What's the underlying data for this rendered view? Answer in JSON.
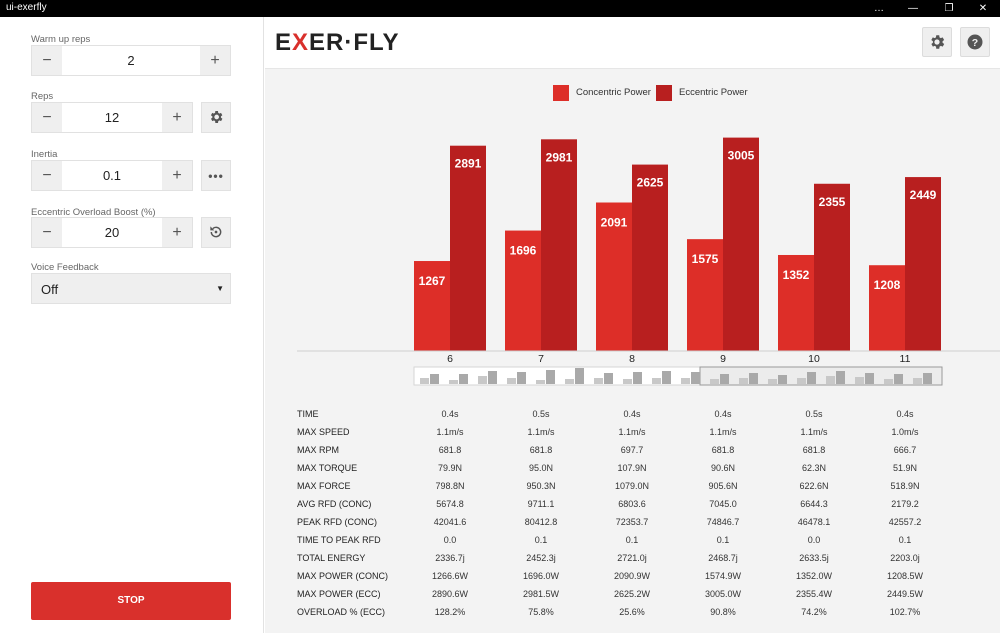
{
  "window": {
    "title": "ui-exerfly",
    "controls": [
      "…",
      "—",
      "❐",
      "✕"
    ]
  },
  "controls": {
    "warmup": {
      "label": "Warm up reps",
      "value": "2"
    },
    "reps": {
      "label": "Reps",
      "value": "12"
    },
    "inertia": {
      "label": "Inertia",
      "value": "0.1"
    },
    "overload": {
      "label": "Eccentric Overload Boost (%)",
      "value": "20"
    },
    "voice": {
      "label": "Voice Feedback",
      "value": "Off"
    },
    "stop_label": "STOP"
  },
  "brand": {
    "logo_part1": "E",
    "logo_part2": "X",
    "logo_part3": "ER·FLY"
  },
  "colors": {
    "concentric": "#dd2e28",
    "eccentric": "#b81f1f",
    "stop": "#d9302c"
  },
  "chart_data": {
    "type": "bar",
    "categories": [
      "6",
      "7",
      "8",
      "9",
      "10",
      "11"
    ],
    "series": [
      {
        "name": "Concentric Power",
        "values": [
          1267,
          1696,
          2091,
          1575,
          1352,
          1208
        ]
      },
      {
        "name": "Eccentric Power",
        "values": [
          2891,
          2981,
          2625,
          3005,
          2355,
          2449
        ]
      }
    ],
    "ylim": [
      0,
      3450
    ],
    "legend": "top-center",
    "grid": false
  },
  "metrics": {
    "rows": [
      {
        "label": "TIME",
        "values": [
          "0.4s",
          "0.5s",
          "0.4s",
          "0.4s",
          "0.5s",
          "0.4s"
        ]
      },
      {
        "label": "MAX SPEED",
        "values": [
          "1.1m/s",
          "1.1m/s",
          "1.1m/s",
          "1.1m/s",
          "1.1m/s",
          "1.0m/s"
        ]
      },
      {
        "label": "MAX RPM",
        "values": [
          "681.8",
          "681.8",
          "697.7",
          "681.8",
          "681.8",
          "666.7"
        ]
      },
      {
        "label": "MAX TORQUE",
        "values": [
          "79.9N",
          "95.0N",
          "107.9N",
          "90.6N",
          "62.3N",
          "51.9N"
        ]
      },
      {
        "label": "MAX FORCE",
        "values": [
          "798.8N",
          "950.3N",
          "1079.0N",
          "905.6N",
          "622.6N",
          "518.9N"
        ]
      },
      {
        "label": "AVG RFD (CONC)",
        "values": [
          "5674.8",
          "9711.1",
          "6803.6",
          "7045.0",
          "6644.3",
          "2179.2"
        ]
      },
      {
        "label": "PEAK RFD (CONC)",
        "values": [
          "42041.6",
          "80412.8",
          "72353.7",
          "74846.7",
          "46478.1",
          "42557.2"
        ]
      },
      {
        "label": "TIME TO PEAK RFD",
        "values": [
          "0.0",
          "0.1",
          "0.1",
          "0.1",
          "0.0",
          "0.1"
        ]
      },
      {
        "label": "TOTAL ENERGY",
        "values": [
          "2336.7j",
          "2452.3j",
          "2721.0j",
          "2468.7j",
          "2633.5j",
          "2203.0j"
        ]
      },
      {
        "label": "MAX POWER (CONC)",
        "values": [
          "1266.6W",
          "1696.0W",
          "2090.9W",
          "1574.9W",
          "1352.0W",
          "1208.5W"
        ]
      },
      {
        "label": "MAX POWER (ECC)",
        "values": [
          "2890.6W",
          "2981.5W",
          "2625.2W",
          "3005.0W",
          "2355.4W",
          "2449.5W"
        ]
      },
      {
        "label": "OVERLOAD % (ECC)",
        "values": [
          "128.2%",
          "75.8%",
          "25.6%",
          "90.8%",
          "74.2%",
          "102.7%"
        ]
      }
    ]
  }
}
